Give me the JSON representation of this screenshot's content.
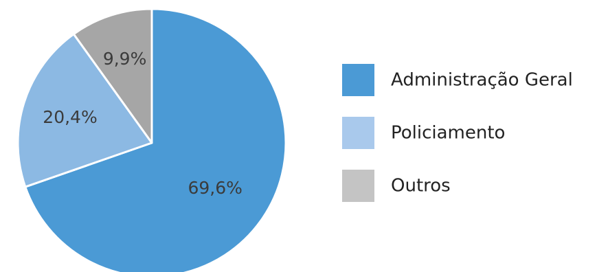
{
  "chart_data": {
    "type": "pie",
    "title": "",
    "slices": [
      {
        "name": "Administração Geral",
        "value": 69.6,
        "label": "69,6%",
        "color": "#4b9ad5"
      },
      {
        "name": "Policiamento",
        "value": 20.4,
        "label": "20,4%",
        "color": "#8cb9e3"
      },
      {
        "name": "Outros",
        "value": 9.9,
        "label": "9,9%",
        "color": "#a6a6a6"
      }
    ],
    "legend": {
      "placement": "right",
      "entries": [
        {
          "label": "Administração Geral",
          "color": "#4b9ad5"
        },
        {
          "label": "Policiamento",
          "color": "#a9c9ec"
        },
        {
          "label": "Outros",
          "color": "#c4c4c4"
        }
      ]
    },
    "slice_border_color": "#ffffff",
    "start_angle_deg": 0,
    "direction": "clockwise"
  }
}
